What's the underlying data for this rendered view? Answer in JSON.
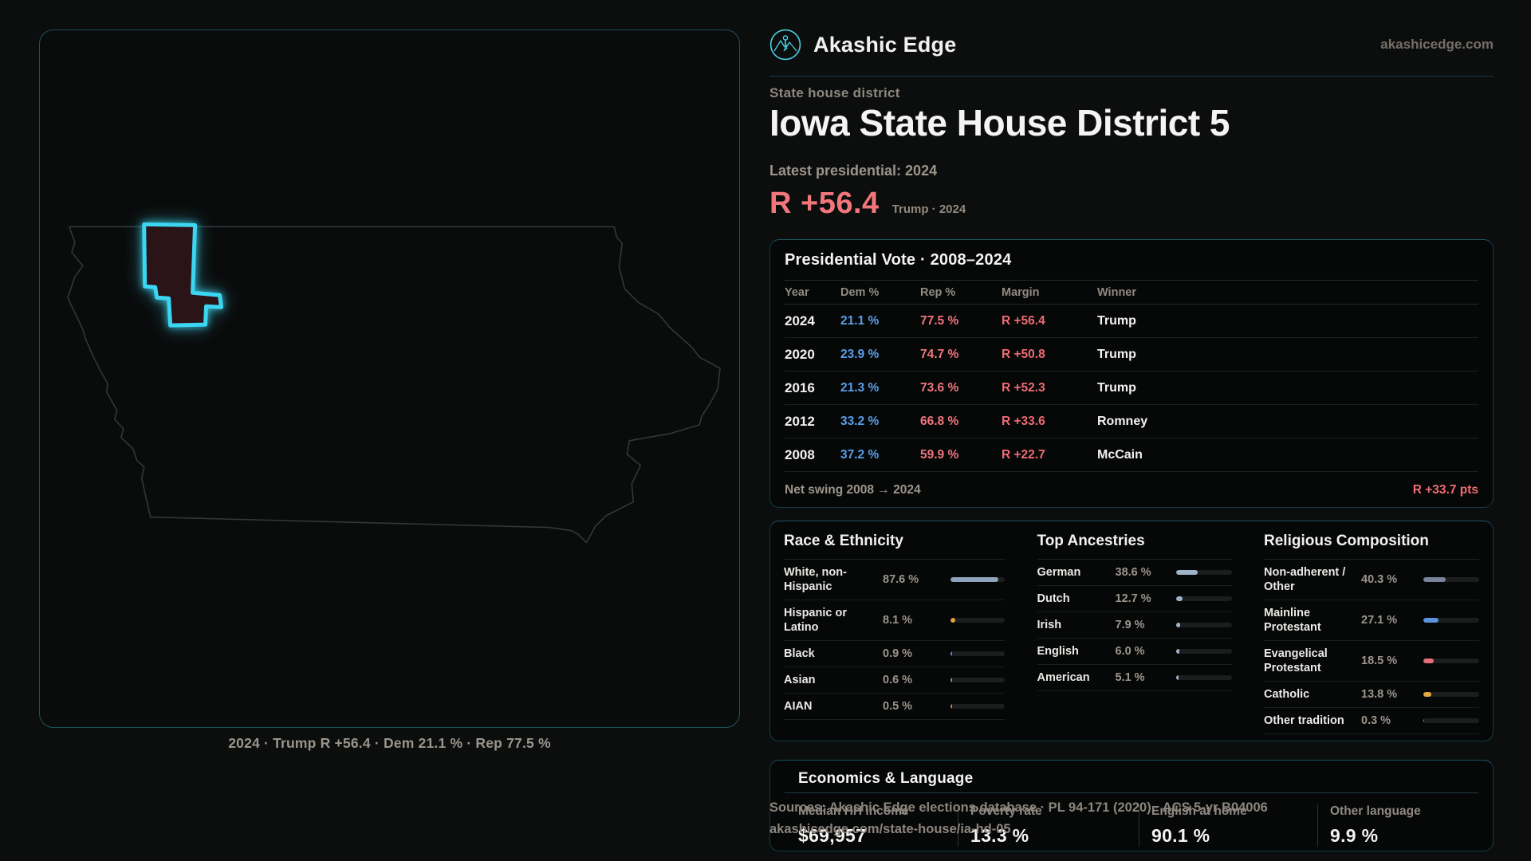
{
  "brand": {
    "name": "Akashic Edge",
    "domain": "akashicedge.com",
    "logo_icon": "akashic-emblem-icon",
    "accent_color": "#3bd6f2"
  },
  "page": {
    "eyebrow": "State house district",
    "title": "Iowa State House District 5",
    "latest_label": "Latest presidential: 2024",
    "headline_margin": "R +56.4",
    "headline_context": "Trump · 2024"
  },
  "map": {
    "state": "Iowa",
    "caption": "2024 · Trump R +56.4 · Dem 21.1 % · Rep 77.5 %",
    "district_stroke": "#3bd6f2",
    "district_fill": "#2a1418",
    "outline_color": "#33373b"
  },
  "colors": {
    "dem": "#5b9ee8",
    "rep": "#f0767e",
    "margin_red": "#ee6b73"
  },
  "table": {
    "title": "Presidential Vote · 2008–2024",
    "columns": [
      "Year",
      "Dem %",
      "Rep %",
      "Margin",
      "Winner"
    ],
    "rows": [
      {
        "year": "2024",
        "dem": "21.1 %",
        "rep": "77.5 %",
        "margin": "R +56.4",
        "winner": "Trump"
      },
      {
        "year": "2020",
        "dem": "23.9 %",
        "rep": "74.7 %",
        "margin": "R +50.8",
        "winner": "Trump"
      },
      {
        "year": "2016",
        "dem": "21.3 %",
        "rep": "73.6 %",
        "margin": "R +52.3",
        "winner": "Trump"
      },
      {
        "year": "2012",
        "dem": "33.2 %",
        "rep": "66.8 %",
        "margin": "R +33.6",
        "winner": "Romney"
      },
      {
        "year": "2008",
        "dem": "37.2 %",
        "rep": "59.9 %",
        "margin": "R +22.7",
        "winner": "McCain"
      }
    ],
    "footer_label": "Net swing 2008 → 2024",
    "footer_value": "R +33.7 pts"
  },
  "demographics": {
    "race": {
      "title": "Race & Ethnicity",
      "rows": [
        {
          "label": "White, non-Hispanic",
          "value": "87.6 %",
          "pct": 87.6,
          "color": "#8fa3bd"
        },
        {
          "label": "Hispanic or Latino",
          "value": "8.1 %",
          "pct": 8.1,
          "color": "#e2a13f"
        },
        {
          "label": "Black",
          "value": "0.9 %",
          "pct": 0.9,
          "color": "#7d76dd"
        },
        {
          "label": "Asian",
          "value": "0.6 %",
          "pct": 0.6,
          "color": "#3eb98e"
        },
        {
          "label": "AIAN",
          "value": "0.5 %",
          "pct": 0.5,
          "color": "#d8823c"
        }
      ]
    },
    "ancestries": {
      "title": "Top Ancestries",
      "rows": [
        {
          "label": "German",
          "value": "38.6 %",
          "pct": 38.6,
          "color": "#9db3ca"
        },
        {
          "label": "Dutch",
          "value": "12.7 %",
          "pct": 12.7,
          "color": "#9db3ca"
        },
        {
          "label": "Irish",
          "value": "7.9 %",
          "pct": 7.9,
          "color": "#9db3ca"
        },
        {
          "label": "English",
          "value": "6.0 %",
          "pct": 6.0,
          "color": "#9db3ca"
        },
        {
          "label": "American",
          "value": "5.1 %",
          "pct": 5.1,
          "color": "#9db3ca"
        }
      ]
    },
    "religion": {
      "title": "Religious Composition",
      "rows": [
        {
          "label": "Non-adherent / Other",
          "value": "40.3 %",
          "pct": 40.3,
          "color": "#79849b"
        },
        {
          "label": "Mainline Protestant",
          "value": "27.1 %",
          "pct": 27.1,
          "color": "#5b93dd"
        },
        {
          "label": "Evangelical Protestant",
          "value": "18.5 %",
          "pct": 18.5,
          "color": "#e4707a"
        },
        {
          "label": "Catholic",
          "value": "13.8 %",
          "pct": 13.8,
          "color": "#e3ac3f"
        },
        {
          "label": "Other tradition",
          "value": "0.3 %",
          "pct": 0.3,
          "color": "#79849b"
        }
      ]
    }
  },
  "economics": {
    "title": "Economics & Language",
    "stats": [
      {
        "label": "Median HH income",
        "value": "$69,957"
      },
      {
        "label": "Poverty rate",
        "value": "13.3 %"
      },
      {
        "label": "English at home",
        "value": "90.1 %"
      },
      {
        "label": "Other language",
        "value": "9.9 %"
      }
    ]
  },
  "footer": {
    "sources_line": "Sources: Akashic Edge elections database · PL 94-171 (2020) · ACS 5-yr B04006",
    "permalink": "akashicedge.com/state-house/ia-hd-05"
  }
}
